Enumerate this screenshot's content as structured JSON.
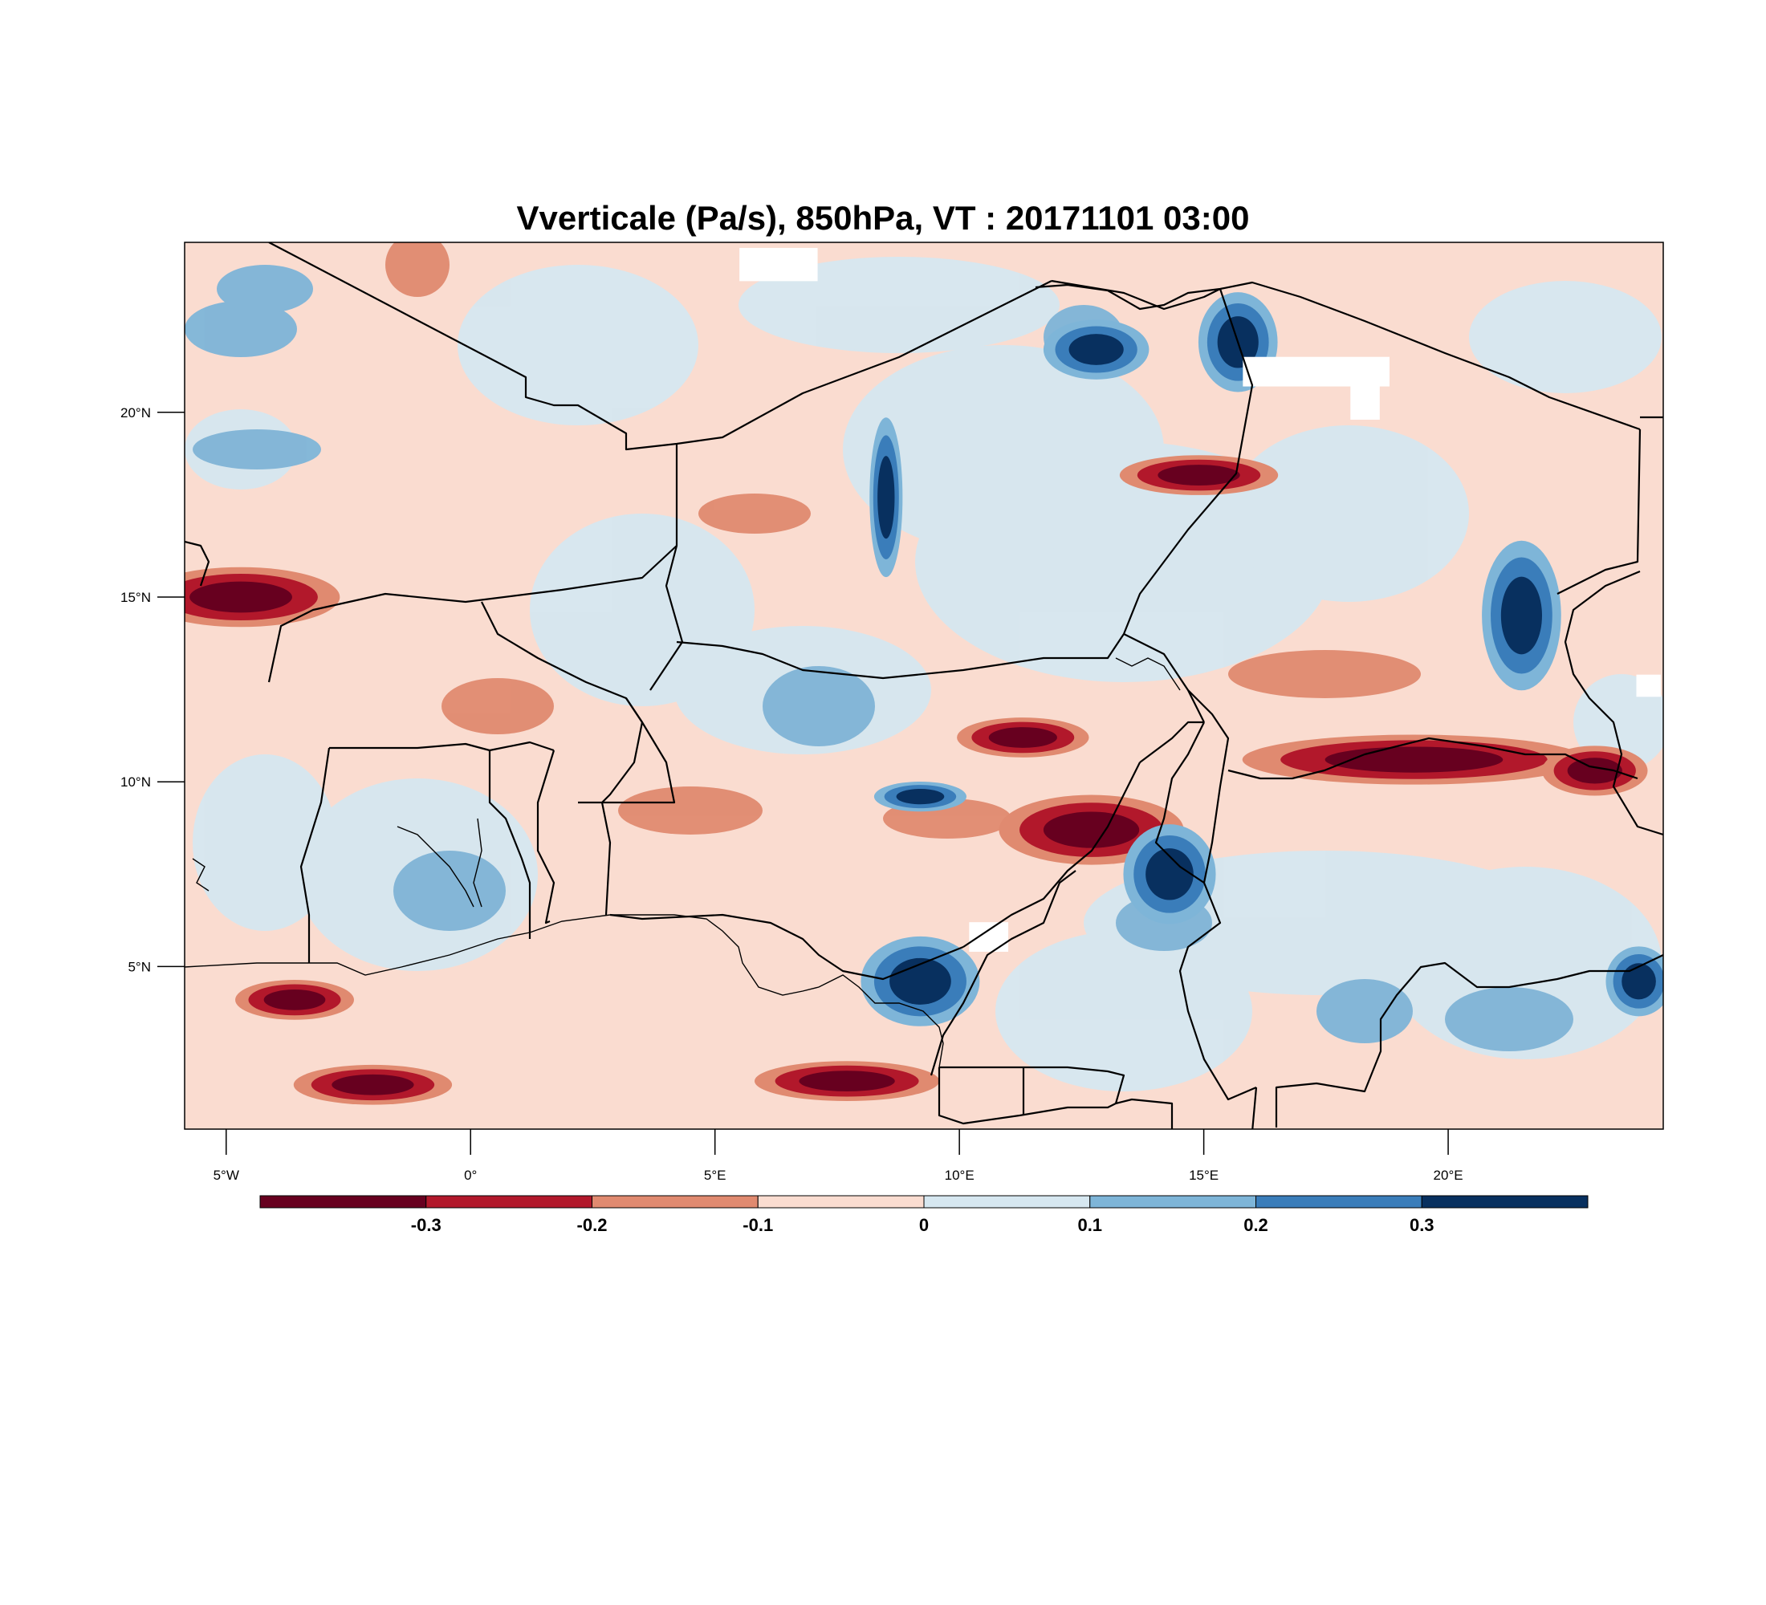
{
  "title": "Vverticale (Pa/s), 850hPa, VT : 20171101  03:00",
  "map": {
    "lon_range": [
      -5.85,
      24.4
    ],
    "lat_range": [
      0.6,
      24.6
    ],
    "lon_ticks": [
      {
        "value": -5,
        "label": "5°W"
      },
      {
        "value": 0,
        "label": "0°"
      },
      {
        "value": 5,
        "label": "5°E"
      },
      {
        "value": 10,
        "label": "10°E"
      },
      {
        "value": 15,
        "label": "15°E"
      },
      {
        "value": 20,
        "label": "20°E"
      }
    ],
    "lat_ticks": [
      {
        "value": 5,
        "label": "5°N"
      },
      {
        "value": 10,
        "label": "10°N"
      },
      {
        "value": 15,
        "label": "15°N"
      },
      {
        "value": 20,
        "label": "20°N"
      }
    ],
    "features": {
      "strong_ascent_areas": [
        {
          "lon": -4.7,
          "lat": 15.0,
          "rx": 1.5,
          "ry": 0.6
        },
        {
          "lon": 12.7,
          "lat": 8.7,
          "rx": 1.4,
          "ry": 0.7
        },
        {
          "lon": 19.3,
          "lat": 10.6,
          "rx": 2.6,
          "ry": 0.5
        },
        {
          "lon": 11.3,
          "lat": 11.2,
          "rx": 1.0,
          "ry": 0.4
        },
        {
          "lon": 7.7,
          "lat": 1.9,
          "rx": 1.4,
          "ry": 0.4
        },
        {
          "lon": -3.6,
          "lat": 4.1,
          "rx": 0.9,
          "ry": 0.4
        },
        {
          "lon": -2.0,
          "lat": 1.8,
          "rx": 1.2,
          "ry": 0.4
        },
        {
          "lon": 23.0,
          "lat": 10.3,
          "rx": 0.8,
          "ry": 0.5
        },
        {
          "lon": 14.9,
          "lat": 18.3,
          "rx": 1.2,
          "ry": 0.4
        }
      ],
      "strong_descent_areas": [
        {
          "lon": 8.5,
          "lat": 17.7,
          "rx": 0.25,
          "ry": 1.6
        },
        {
          "lon": 15.7,
          "lat": 21.9,
          "rx": 0.6,
          "ry": 1.0
        },
        {
          "lon": 21.5,
          "lat": 14.5,
          "rx": 0.6,
          "ry": 1.5
        },
        {
          "lon": 14.3,
          "lat": 7.5,
          "rx": 0.7,
          "ry": 1.0
        },
        {
          "lon": 9.2,
          "lat": 4.6,
          "rx": 0.9,
          "ry": 0.9
        },
        {
          "lon": 9.2,
          "lat": 9.6,
          "rx": 0.7,
          "ry": 0.3
        },
        {
          "lon": 23.9,
          "lat": 4.6,
          "rx": 0.5,
          "ry": 0.7
        },
        {
          "lon": 12.8,
          "lat": 21.7,
          "rx": 0.8,
          "ry": 0.6
        }
      ],
      "missing_data_areas": [
        {
          "lon": 6.3,
          "lat": 24.0,
          "rx": 0.8,
          "ry": 0.45
        },
        {
          "lon": 17.3,
          "lat": 21.1,
          "rx": 1.5,
          "ry": 0.4
        },
        {
          "lon": 18.3,
          "lat": 20.4,
          "rx": 0.3,
          "ry": 0.6
        },
        {
          "lon": 10.6,
          "lat": 5.8,
          "rx": 0.4,
          "ry": 0.4
        },
        {
          "lon": 24.1,
          "lat": 12.6,
          "rx": 0.25,
          "ry": 0.3
        }
      ]
    }
  },
  "colorbar": {
    "colors": [
      "#67001f",
      "#b2182b",
      "#e08a70",
      "#fadcd0",
      "#d6e7f0",
      "#7eb5d8",
      "#3a7dba",
      "#08305f"
    ],
    "labels": [
      "-0.3",
      "-0.2",
      "-0.1",
      "0",
      "0.1",
      "0.2",
      "0.3"
    ]
  }
}
